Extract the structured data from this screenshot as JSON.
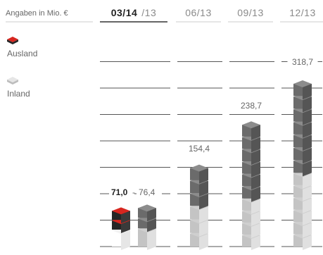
{
  "header": {
    "unit_label": "Angaben in Mio. €",
    "periods": [
      {
        "main": "03/14",
        "compare": "/13"
      },
      {
        "main": "06/13"
      },
      {
        "main": "09/13"
      },
      {
        "main": "12/13"
      }
    ]
  },
  "legend": [
    {
      "label": "Ausland",
      "color": "#d7261f"
    },
    {
      "label": "Inland",
      "color": "#cfcfcf"
    }
  ],
  "colors": {
    "ausland_top": "#d7261f",
    "ausland_side": "#262626",
    "inland_top": "#e6e6e6",
    "inland_side": "#f2f2f2",
    "dark_top": "#8c8c8c",
    "dark_side": "#555555",
    "light_top": "#cfcfcf",
    "light_side": "#e0e0e0",
    "gridline": "#555555"
  },
  "chart_data": {
    "type": "bar",
    "title": "",
    "unit": "Angaben in Mio. €",
    "categories": [
      "03/14",
      "03/13",
      "06/13",
      "09/13",
      "12/13"
    ],
    "total_labels": [
      "71,0",
      "76,4",
      "154,4",
      "238,7",
      "318,7"
    ],
    "totals": [
      71.0,
      76.4,
      154.4,
      238.7,
      318.7
    ],
    "series": [
      {
        "name": "Ausland",
        "values": [
          38.0,
          41.0,
          75.0,
          145.0,
          175.0
        ]
      },
      {
        "name": "Inland",
        "values": [
          33.0,
          35.4,
          79.4,
          93.7,
          143.7
        ]
      }
    ],
    "ylim": [
      0,
      330
    ],
    "grid": true,
    "legend_position": "top-left"
  }
}
